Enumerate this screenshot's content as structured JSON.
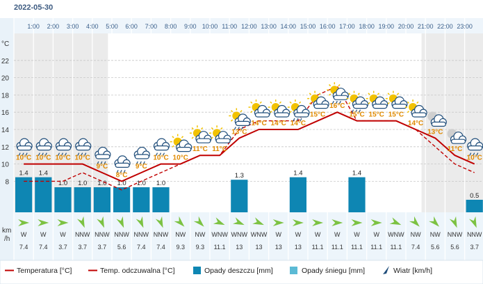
{
  "date": "2022-05-30",
  "y_unit": "°C",
  "wind_unit": "km\n/h",
  "chart_data": {
    "type": "line",
    "hours": [
      "1:00",
      "2:00",
      "3:00",
      "4:00",
      "5:00",
      "6:00",
      "7:00",
      "8:00",
      "9:00",
      "10:00",
      "11:00",
      "12:00",
      "13:00",
      "14:00",
      "15:00",
      "16:00",
      "17:00",
      "18:00",
      "19:00",
      "20:00",
      "21:00",
      "22:00",
      "23:00"
    ],
    "y_ticks": [
      8,
      10,
      12,
      14,
      16,
      18,
      20,
      22
    ],
    "ylim": [
      6,
      24
    ],
    "temperature": [
      10,
      10,
      10,
      10,
      9,
      8,
      9,
      10,
      10,
      11,
      11,
      13,
      14,
      14,
      14,
      15,
      16,
      15,
      15,
      15,
      14,
      13,
      11,
      10
    ],
    "feels_like": [
      8,
      8,
      8,
      9,
      8,
      7,
      8,
      9,
      10,
      11,
      11,
      14,
      15,
      15,
      15,
      18,
      19,
      15,
      15,
      15,
      14,
      12,
      10,
      9
    ],
    "temp_labels": [
      "10°C",
      "10°C",
      "10°C",
      "10°C",
      "9°C",
      "8°C",
      "9°C",
      "10°C",
      "10°C",
      "11°C",
      "11°C",
      "13°C",
      "14°C",
      "14°C",
      "14°C",
      "15°C",
      "16°C",
      "15°C",
      "15°C",
      "15°C",
      "14°C",
      "13°C",
      "11°C",
      "10°C"
    ],
    "rain": [
      1.4,
      1.4,
      1.0,
      1.0,
      1.0,
      1.0,
      1.0,
      1.0,
      0,
      0,
      0,
      1.3,
      0,
      0,
      1.4,
      0,
      0,
      1.4,
      0,
      0,
      0,
      0,
      0,
      0.5
    ],
    "rain_labels": [
      "1.4",
      "1.4",
      "1.0",
      "1.0",
      "1.0",
      "1.0",
      "1.0",
      "1.0",
      "",
      "",
      "",
      "1.3",
      "",
      "",
      "1.4",
      "",
      "",
      "1.4",
      "",
      "",
      "",
      "",
      "",
      "0.5"
    ],
    "wind_dir": [
      "W",
      "W",
      "W",
      "NNW",
      "NNW",
      "NNW",
      "NNW",
      "NNW",
      "NW",
      "NW",
      "WNW",
      "WNW",
      "WNW",
      "W",
      "W",
      "W",
      "W",
      "W",
      "W",
      "WNW",
      "NW",
      "NW",
      "NNW",
      "NNW"
    ],
    "wind_speed": [
      "7.4",
      "7.4",
      "3.7",
      "3.7",
      "3.7",
      "5.6",
      "7.4",
      "7.4",
      "9.3",
      "9.3",
      "11.1",
      "13",
      "13",
      "13",
      "13",
      "11.1",
      "11.1",
      "11.1",
      "11.1",
      "11.1",
      "7.4",
      "5.6",
      "5.6",
      "3.7"
    ],
    "icons": [
      "rain-cloud-icon",
      "rain-cloud-icon",
      "rain-cloud-icon",
      "rain-cloud-icon",
      "rain-cloud-icon",
      "rain-cloud-icon",
      "rain-cloud-icon",
      "rain-cloud-icon",
      "sun-cloud-icon",
      "sun-cloud-icon",
      "sun-cloud-icon",
      "sun-rain-cloud-icon",
      "sun-cloud-icon",
      "sun-cloud-icon",
      "sun-rain-cloud-icon",
      "sun-cloud-icon",
      "sun-rain-cloud-icon",
      "sun-rain-cloud-icon",
      "sun-cloud-icon",
      "sun-cloud-icon",
      "sun-cloud-icon",
      "moon-cloud-icon",
      "moon-cloud-icon",
      "rain-cloud-icon"
    ],
    "colors": {
      "temperature": "#c00000",
      "feels_like": "#c00000",
      "rain": "#0e86b3",
      "snow": "#5bbad5",
      "sun": "#f2c200",
      "night": "#e6e6e6"
    }
  },
  "legend": {
    "temperature": "Temperatura [°C]",
    "feels_like": "Temp. odczuwalna [°C]",
    "rain": "Opady deszczu [mm]",
    "snow": "Opady śniegu [mm]",
    "wind": "Wiatr [km/h]"
  }
}
